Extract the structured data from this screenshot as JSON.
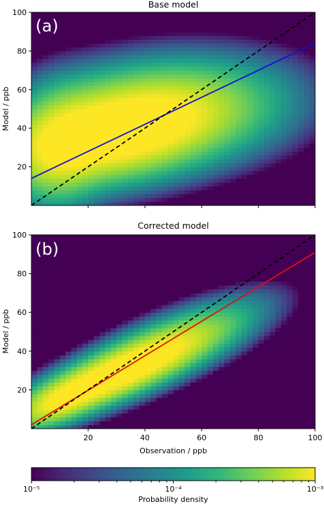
{
  "chart_data": [
    {
      "type": "heatmap",
      "panel_tag": "(a)",
      "title": "Base model",
      "xlabel": "",
      "ylabel": "Model / ppb",
      "xlim": [
        0,
        100
      ],
      "ylim": [
        0,
        100
      ],
      "yticks": [
        20,
        40,
        60,
        80,
        100
      ],
      "xticks": [
        20,
        40,
        60,
        80,
        100
      ],
      "show_xtick_labels": false,
      "density_blobs": [
        {
          "cx": 27,
          "cy": 36,
          "sx": 20,
          "sy": 13,
          "rho": 0.35,
          "weight": 1.0
        },
        {
          "cx": 45,
          "cy": 48,
          "sx": 22,
          "sy": 14,
          "rho": 0.2,
          "weight": 0.55
        },
        {
          "cx": 10,
          "cy": 30,
          "sx": 8,
          "sy": 16,
          "rho": 0.1,
          "weight": 0.35
        }
      ],
      "lines": [
        {
          "kind": "fit",
          "color": "#1010d0",
          "dash": false,
          "x": [
            0,
            100
          ],
          "y": [
            14,
            84
          ]
        },
        {
          "kind": "one-to-one",
          "color": "#000000",
          "dash": true,
          "x": [
            0,
            100
          ],
          "y": [
            0,
            100
          ]
        }
      ]
    },
    {
      "type": "heatmap",
      "panel_tag": "(b)",
      "title": "Corrected model",
      "xlabel": "Observation / ppb",
      "ylabel": "Model / ppb",
      "xlim": [
        0,
        100
      ],
      "ylim": [
        0,
        100
      ],
      "yticks": [
        20,
        40,
        60,
        80,
        100
      ],
      "xticks": [
        20,
        40,
        60,
        80,
        100
      ],
      "show_xtick_labels": true,
      "density_blobs": [
        {
          "cx": 28,
          "cy": 27,
          "sx": 17,
          "sy": 12,
          "rho": 0.82,
          "weight": 1.0
        },
        {
          "cx": 48,
          "cy": 42,
          "sx": 16,
          "sy": 12,
          "rho": 0.75,
          "weight": 0.45
        },
        {
          "cx": 10,
          "cy": 14,
          "sx": 8,
          "sy": 7,
          "rho": 0.6,
          "weight": 0.4
        }
      ],
      "lines": [
        {
          "kind": "fit",
          "color": "#e01010",
          "dash": false,
          "x": [
            0,
            100
          ],
          "y": [
            2,
            91
          ]
        },
        {
          "kind": "one-to-one",
          "color": "#000000",
          "dash": true,
          "x": [
            0,
            100
          ],
          "y": [
            0,
            100
          ]
        }
      ]
    }
  ],
  "colorbar": {
    "label": "Probability density",
    "scale": "log",
    "range": [
      1e-05,
      0.001
    ],
    "tick_labels": [
      "10⁻⁵",
      "10⁻⁴",
      "10⁻³"
    ],
    "colormap": "viridis"
  },
  "colors": {
    "viridis": [
      "#440154",
      "#482878",
      "#3e4989",
      "#31688e",
      "#26828e",
      "#1f9e89",
      "#35b779",
      "#6ece58",
      "#b5de2b",
      "#fde725"
    ]
  }
}
